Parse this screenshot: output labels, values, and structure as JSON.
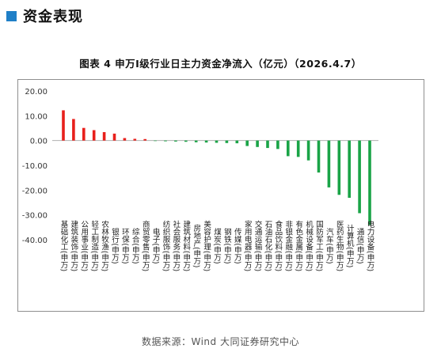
{
  "section": {
    "title": "资金表现"
  },
  "source_note": "数据来源：Wind 大同证券研究中心",
  "chart_data": {
    "type": "bar",
    "title": "图表 4   申万Ⅰ级行业日主力资金净流入（亿元）（2026.4.7）",
    "ylim": [
      -40,
      20
    ],
    "yticks": [
      "20.00",
      "10.00",
      "0.00",
      "-10.00",
      "-20.00",
      "-30.00",
      "-40.00"
    ],
    "grid": false,
    "legend": "none",
    "colors": {
      "positive": "#e8201c",
      "negative": "#1aa447"
    },
    "categories": [
      "基础化工(申万)",
      "建筑装饰(申万)",
      "公用事业(申万)",
      "轻工制造(申万)",
      "农林牧渔(申万)",
      "银行(申万)",
      "环保(申万)",
      "综合(申万)",
      "商贸零售(申万)",
      "电子(申万)",
      "纺织服饰(申万)",
      "社会服务(申万)",
      "建筑材料(申万)",
      "房地产(申万)",
      "美容护理(申万)",
      "煤炭(申万)",
      "钢铁(申万)",
      "传媒(申万)",
      "家用电器(申万)",
      "交通运输(申万)",
      "石油石化(申万)",
      "食品饮料(申万)",
      "非银金融(申万)",
      "有色金属(申万)",
      "机械设备(申万)",
      "国防军工(申万)",
      "汽车(申万)",
      "医药生物(申万)",
      "计算机(申万)",
      "通信(申万)",
      "电力设备(申万)"
    ],
    "values": [
      12.2,
      8.7,
      5.1,
      4.2,
      3.4,
      2.8,
      1.0,
      0.7,
      0.6,
      -0.2,
      -0.3,
      -0.4,
      -0.5,
      -0.7,
      -0.8,
      -0.9,
      -1.0,
      -1.1,
      -2.2,
      -2.6,
      -3.0,
      -3.4,
      -6.3,
      -6.6,
      -8.0,
      -12.9,
      -18.9,
      -21.9,
      -23.1,
      -29.3,
      -34.0
    ]
  }
}
